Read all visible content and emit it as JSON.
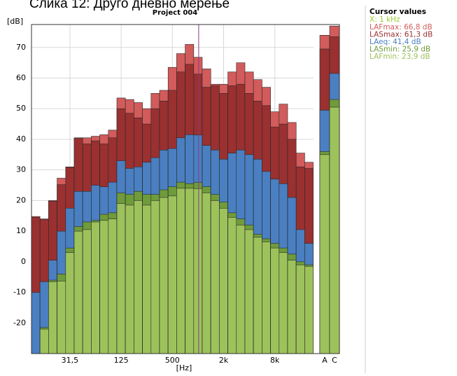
{
  "caption": "Слика 12: Друго дневно мерење",
  "chart_data": {
    "type": "bar",
    "title": "Project 004",
    "y_label": "[dB]",
    "x_label": "[Hz]",
    "categories": [
      null,
      null,
      null,
      null,
      "31,5",
      null,
      null,
      null,
      null,
      null,
      "125",
      null,
      null,
      null,
      null,
      null,
      "500",
      null,
      null,
      null,
      null,
      null,
      "2k",
      null,
      null,
      null,
      null,
      null,
      "8k",
      null,
      null,
      null,
      null,
      "A",
      "C"
    ],
    "series": [
      {
        "legend": "LAFmax: 66,8 dB",
        "color": "#d25b5b",
        "values": [
          14.8,
          14,
          20,
          27.3,
          31,
          40.5,
          40.5,
          41,
          41.5,
          43,
          53.5,
          53,
          52,
          50,
          55,
          56,
          63.5,
          68,
          71,
          66.8,
          63,
          58,
          58,
          62,
          65,
          62,
          59.5,
          57,
          49,
          51.5,
          45.5,
          35.5,
          32.5,
          74,
          77
        ]
      },
      {
        "legend": "LASmax: 61,3 dB",
        "color": "#9a3030",
        "values": [
          14.5,
          13.8,
          19.8,
          25.2,
          30.8,
          40.3,
          38.5,
          39.5,
          38.5,
          40.5,
          50,
          48.5,
          47,
          45,
          50,
          52.5,
          56,
          62,
          64.5,
          61.3,
          57,
          57.5,
          55,
          57.5,
          58,
          55,
          52.5,
          51,
          44,
          45,
          40,
          31,
          30.5,
          69.5,
          73.5
        ]
      },
      {
        "legend": "LAeq: 41,4 dB",
        "color": "#4a7fc1",
        "values": [
          -10,
          -6.5,
          0.5,
          10,
          17.5,
          23,
          23,
          25,
          24.5,
          26,
          33,
          30.5,
          31,
          32.5,
          34,
          36.5,
          37,
          40.5,
          41.5,
          41.4,
          38,
          36.5,
          33.5,
          35.5,
          36.5,
          35,
          33.5,
          29.5,
          27,
          25.5,
          21,
          10.5,
          6,
          49.5,
          61.5
        ]
      },
      {
        "legend": "LASmin: 25,9 dB",
        "color": "#6f9b3b",
        "values": [
          -30,
          -21.5,
          -6,
          -4,
          4.5,
          11.5,
          13,
          13.5,
          15.5,
          16,
          22.5,
          22,
          23,
          22,
          22,
          23.5,
          24.5,
          26,
          25.5,
          25.9,
          24.5,
          22,
          19.5,
          16,
          14,
          12,
          9,
          7.5,
          6,
          4.5,
          2.5,
          0,
          -1,
          36,
          53
        ]
      },
      {
        "legend": "LAFmin: 23,9 dB",
        "color": "#9dc25b",
        "values": [
          -30,
          -22,
          -6.5,
          -6.3,
          3,
          10,
          10.5,
          13,
          13.5,
          14,
          19,
          18.5,
          20,
          18.5,
          20,
          21,
          21.5,
          24,
          24,
          23.9,
          22.5,
          20,
          17.5,
          14.5,
          12,
          10.5,
          8,
          6.5,
          4.5,
          3,
          0.5,
          -1,
          -1.5,
          35,
          50.5
        ]
      }
    ],
    "ylim": [
      -30,
      77.5
    ],
    "yticks": [
      -20,
      -10,
      0,
      10,
      20,
      30,
      40,
      50,
      60,
      70
    ],
    "grid": true,
    "cursor": {
      "title": "Cursor values",
      "x": "X: 1 kHz",
      "x_color": "#9acd32",
      "index": 19,
      "color": "#8a3a8a"
    }
  }
}
